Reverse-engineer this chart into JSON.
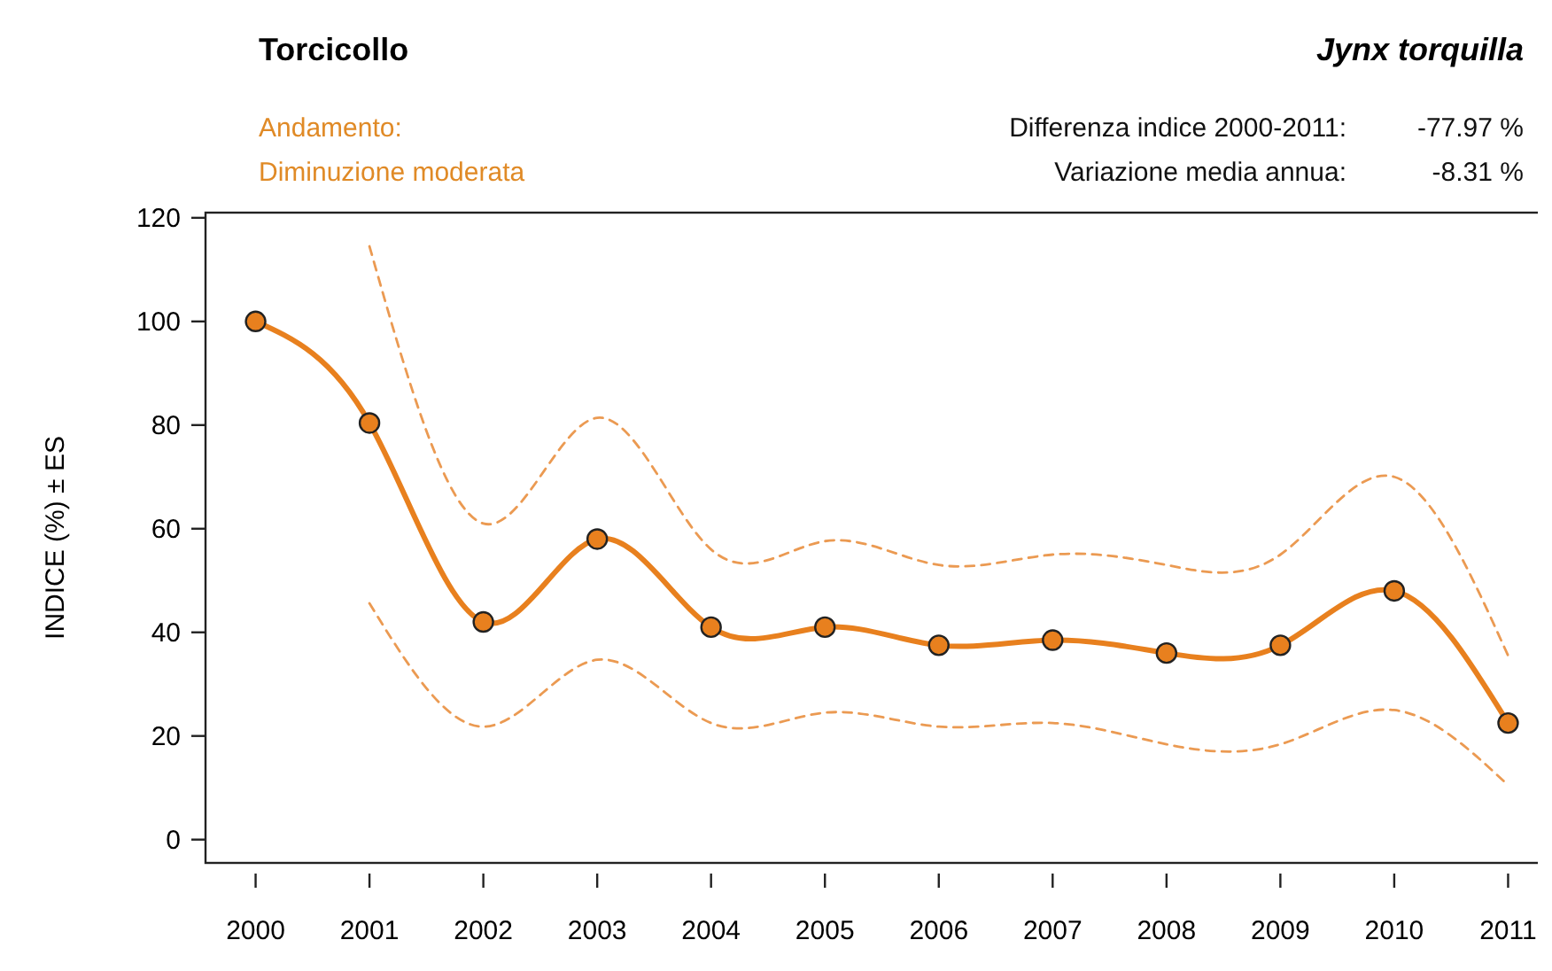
{
  "chart_data": {
    "type": "line",
    "title": "Torcicollo",
    "subtitle": "Jynx torquilla",
    "ylabel": "INDICE (%) ± ES",
    "annotations": [
      "Andamento:",
      "Diminuzione moderata",
      "Differenza indice 2000-2011:",
      "-77.97 %",
      "Variazione media annua:",
      "-8.31 %"
    ],
    "x": [
      2000,
      2001,
      2002,
      2003,
      2004,
      2005,
      2006,
      2007,
      2008,
      2009,
      2010,
      2011
    ],
    "series": [
      {
        "color": "#eb9a52",
        "line_style": "dashed",
        "marker": "none",
        "x": [
          2001,
          2002,
          2003,
          2004,
          2005,
          2006,
          2007,
          2008,
          2009,
          2010,
          2011
        ],
        "values": [
          114.5,
          61,
          81.4,
          56,
          57.6,
          53,
          55,
          53,
          55,
          70,
          35.5
        ]
      },
      {
        "color": "#eb9a52",
        "line_style": "dashed",
        "marker": "none",
        "x": [
          2001,
          2002,
          2003,
          2004,
          2005,
          2006,
          2007,
          2008,
          2009,
          2010,
          2011
        ],
        "values": [
          45.6,
          21.8,
          34.7,
          22.5,
          24.5,
          21.8,
          22.5,
          18.4,
          18.4,
          25,
          10.5
        ]
      },
      {
        "color": "#e8801e",
        "values": [
          100,
          80.4,
          42,
          58,
          41,
          41,
          37.5,
          38.5,
          36,
          37.5,
          48,
          22.5
        ]
      }
    ],
    "xlim": [
      1999.56,
      2011.37
    ],
    "xticks": [
      2000,
      2001,
      2002,
      2003,
      2004,
      2005,
      2006,
      2007,
      2008,
      2009,
      2010,
      2011
    ],
    "ylim": [
      -4.5,
      121
    ],
    "yticks": [
      0,
      20,
      40,
      60,
      80,
      100,
      120
    ],
    "grid": false,
    "marker": "circle",
    "line_style": "solid"
  }
}
